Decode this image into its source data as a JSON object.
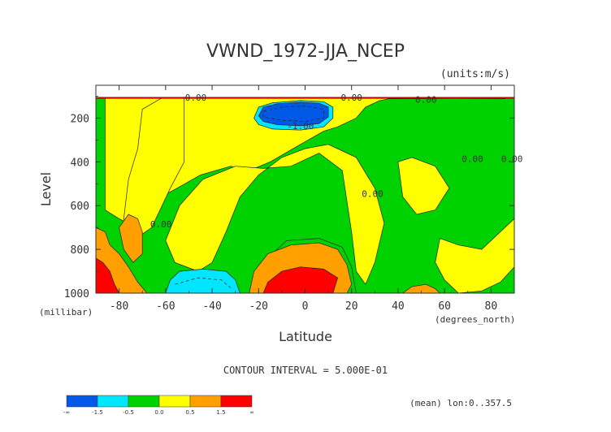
{
  "chart_data": {
    "type": "contour",
    "title": "VWND_1972-JJA_NCEP",
    "units": "(units:m/s)",
    "xlabel": "Latitude",
    "ylabel": "Level",
    "x_unit_label": "(degrees_north)",
    "y_unit_label": "(millibar)",
    "xlim": [
      -90,
      90
    ],
    "ylim": [
      1000,
      50
    ],
    "x_ticks": [
      -80,
      -60,
      -40,
      -20,
      0,
      20,
      40,
      60,
      80
    ],
    "y_ticks": [
      200,
      400,
      600,
      800,
      1000
    ],
    "contour_interval_text": "CONTOUR INTERVAL = 5.000E-01",
    "contour_labels": [
      {
        "text": "0.00",
        "x": -47,
        "y": 120
      },
      {
        "text": "0.00",
        "x": 20,
        "y": 120
      },
      {
        "text": "0.00",
        "x": 52,
        "y": 130
      },
      {
        "text": "-1.00",
        "x": -2,
        "y": 250
      },
      {
        "text": "0.00",
        "x": 72,
        "y": 400
      },
      {
        "text": "0.00",
        "x": 89,
        "y": 400
      },
      {
        "text": "0.00",
        "x": 29,
        "y": 560
      },
      {
        "text": "0.00",
        "x": -62,
        "y": 700
      }
    ],
    "legend": {
      "colors": [
        "#0059e6",
        "#00e6ff",
        "#00d200",
        "#ffff00",
        "#ffa000",
        "#ff0000"
      ],
      "labels": [
        "-∞",
        "-1.5",
        "-0.5",
        "0.0",
        "0.5",
        "1.5",
        "∞"
      ]
    },
    "footer_text": "(mean) lon:0..357.5",
    "regions": [
      {
        "color": "#00d200",
        "level": "-0.5 to 0.0",
        "poly": [
          [
            -90,
            1000
          ],
          [
            -90,
            105
          ],
          [
            90,
            105
          ],
          [
            90,
            1000
          ]
        ]
      },
      {
        "color": "#ffff00",
        "level": "0.0 to 0.5",
        "poly": [
          [
            -86,
            105
          ],
          [
            -86,
            620
          ],
          [
            -80,
            660
          ],
          [
            -72,
            700
          ],
          [
            -68,
            620
          ],
          [
            -62,
            560
          ],
          [
            -55,
            520
          ],
          [
            -45,
            460
          ],
          [
            -32,
            420
          ],
          [
            -24,
            440
          ],
          [
            -15,
            400
          ],
          [
            -2,
            320
          ],
          [
            8,
            260
          ],
          [
            14,
            240
          ],
          [
            22,
            200
          ],
          [
            26,
            150
          ],
          [
            32,
            120
          ],
          [
            36,
            112
          ],
          [
            65,
            110
          ],
          [
            86,
            112
          ],
          [
            86,
            105
          ]
        ]
      },
      {
        "color": "#ffff00",
        "level": "0.0 to 0.5",
        "poly": [
          [
            -70,
            160
          ],
          [
            -62,
            110
          ],
          [
            -52,
            105
          ],
          [
            -52,
            400
          ],
          [
            -58,
            520
          ],
          [
            -66,
            700
          ],
          [
            -74,
            760
          ],
          [
            -78,
            660
          ],
          [
            -76,
            480
          ],
          [
            -72,
            340
          ]
        ]
      },
      {
        "color": "#ffff00",
        "level": "0.0 to 0.5",
        "poly": [
          [
            -30,
            420
          ],
          [
            -18,
            430
          ],
          [
            -6,
            420
          ],
          [
            6,
            360
          ],
          [
            16,
            440
          ],
          [
            20,
            720
          ],
          [
            22,
            900
          ],
          [
            26,
            960
          ],
          [
            30,
            860
          ],
          [
            34,
            680
          ],
          [
            30,
            520
          ],
          [
            22,
            380
          ],
          [
            10,
            320
          ],
          [
            0,
            340
          ],
          [
            -10,
            380
          ],
          [
            -20,
            460
          ],
          [
            -28,
            560
          ],
          [
            -34,
            720
          ],
          [
            -40,
            860
          ],
          [
            -46,
            900
          ],
          [
            -56,
            860
          ],
          [
            -60,
            760
          ],
          [
            -54,
            600
          ],
          [
            -44,
            480
          ]
        ]
      },
      {
        "color": "#ffff00",
        "level": "0.0 to 0.5",
        "poly": [
          [
            58,
            750
          ],
          [
            66,
            780
          ],
          [
            76,
            800
          ],
          [
            84,
            720
          ],
          [
            90,
            660
          ],
          [
            90,
            880
          ],
          [
            84,
            950
          ],
          [
            76,
            990
          ],
          [
            66,
            1000
          ],
          [
            60,
            940
          ],
          [
            56,
            860
          ]
        ]
      },
      {
        "color": "#ffff00",
        "level": "0.0 to 0.5",
        "poly": [
          [
            40,
            400
          ],
          [
            46,
            380
          ],
          [
            56,
            420
          ],
          [
            62,
            520
          ],
          [
            56,
            620
          ],
          [
            48,
            640
          ],
          [
            42,
            560
          ]
        ]
      },
      {
        "color": "#00d200",
        "level": "-0.5 to 0.0",
        "poly": [
          [
            -16,
            1000
          ],
          [
            -14,
            820
          ],
          [
            -8,
            760
          ],
          [
            6,
            750
          ],
          [
            16,
            790
          ],
          [
            20,
            880
          ],
          [
            22,
            1000
          ]
        ]
      },
      {
        "color": "#ffa000",
        "level": "0.5 to 1.0",
        "poly": [
          [
            -24,
            1000
          ],
          [
            -22,
            900
          ],
          [
            -16,
            820
          ],
          [
            -6,
            780
          ],
          [
            6,
            770
          ],
          [
            14,
            800
          ],
          [
            18,
            870
          ],
          [
            20,
            960
          ],
          [
            18,
            1000
          ]
        ]
      },
      {
        "color": "#ff0000",
        "level": "1.5 to 2.0",
        "poly": [
          [
            -18,
            1000
          ],
          [
            -16,
            950
          ],
          [
            -10,
            900
          ],
          [
            -2,
            880
          ],
          [
            8,
            890
          ],
          [
            14,
            930
          ],
          [
            12,
            1000
          ]
        ]
      },
      {
        "color": "#00e6ff",
        "level": "-1.0 to -0.5",
        "poly": [
          [
            -60,
            1000
          ],
          [
            -58,
            940
          ],
          [
            -54,
            900
          ],
          [
            -44,
            890
          ],
          [
            -34,
            900
          ],
          [
            -30,
            940
          ],
          [
            -28,
            1000
          ]
        ]
      },
      {
        "color": "#ffa000",
        "level": "0.5 to 1.0",
        "poly": [
          [
            -90,
            700
          ],
          [
            -86,
            720
          ],
          [
            -84,
            780
          ],
          [
            -80,
            820
          ],
          [
            -76,
            880
          ],
          [
            -72,
            950
          ],
          [
            -68,
            1000
          ],
          [
            -90,
            1000
          ]
        ]
      },
      {
        "color": "#ffa000",
        "level": "0.5 to 1.0",
        "poly": [
          [
            -80,
            700
          ],
          [
            -76,
            640
          ],
          [
            -72,
            660
          ],
          [
            -70,
            720
          ],
          [
            -70,
            820
          ],
          [
            -74,
            860
          ],
          [
            -78,
            800
          ]
        ]
      },
      {
        "color": "#ff0000",
        "level": "1.5 to 2.0",
        "poly": [
          [
            -90,
            840
          ],
          [
            -87,
            860
          ],
          [
            -84,
            900
          ],
          [
            -82,
            960
          ],
          [
            -80,
            1000
          ],
          [
            -90,
            1000
          ]
        ]
      },
      {
        "color": "#ffa000",
        "level": "0.5 to 1.0",
        "poly": [
          [
            42,
            1000
          ],
          [
            46,
            970
          ],
          [
            52,
            960
          ],
          [
            56,
            980
          ],
          [
            58,
            1000
          ]
        ]
      },
      {
        "color": "#00e6ff",
        "level": "-1.0 to -0.5",
        "poly": [
          [
            -22,
            200
          ],
          [
            -20,
            150
          ],
          [
            -14,
            130
          ],
          [
            -2,
            120
          ],
          [
            8,
            125
          ],
          [
            12,
            150
          ],
          [
            12,
            200
          ],
          [
            8,
            240
          ],
          [
            -2,
            255
          ],
          [
            -14,
            250
          ],
          [
            -20,
            230
          ]
        ]
      },
      {
        "color": "#0059e6",
        "level": "-1.5 to -1.0",
        "poly": [
          [
            -20,
            190
          ],
          [
            -18,
            150
          ],
          [
            -12,
            135
          ],
          [
            -2,
            128
          ],
          [
            6,
            132
          ],
          [
            10,
            150
          ],
          [
            10,
            195
          ],
          [
            6,
            225
          ],
          [
            -2,
            235
          ],
          [
            -12,
            230
          ],
          [
            -18,
            215
          ]
        ]
      },
      {
        "color": "#ff0000",
        "level": "strip",
        "poly": [
          [
            -90,
            105
          ],
          [
            90,
            105
          ],
          [
            90,
            110
          ],
          [
            -90,
            110
          ]
        ]
      }
    ]
  }
}
